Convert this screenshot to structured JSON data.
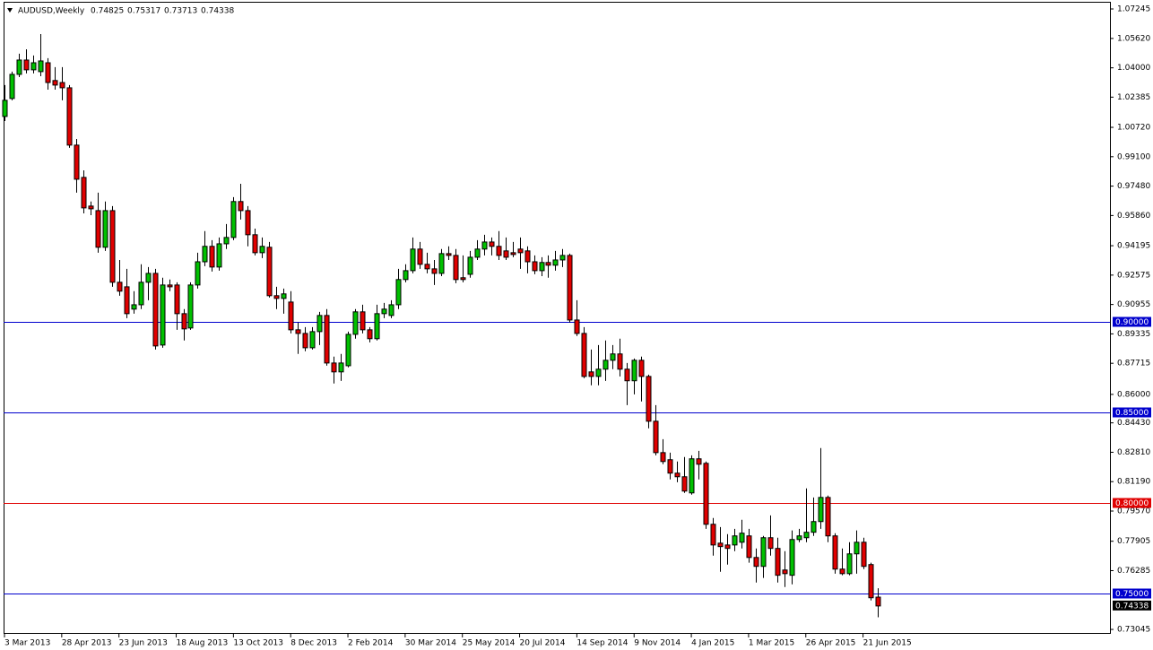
{
  "chart_data": {
    "type": "candlestick",
    "title": "AUDUSD,Weekly",
    "categories": [
      "3 Mar 2013",
      null,
      null,
      null,
      null,
      null,
      null,
      null,
      "28 Apr 2013",
      null,
      null,
      null,
      null,
      null,
      null,
      null,
      "23 Jun 2013",
      null,
      null,
      null,
      null,
      null,
      null,
      null,
      "18 Aug 2013",
      null,
      null,
      null,
      null,
      null,
      null,
      null,
      "13 Oct 2013",
      null,
      null,
      null,
      null,
      null,
      null,
      null,
      "8 Dec 2013",
      null,
      null,
      null,
      null,
      null,
      null,
      null,
      "2 Feb 2014",
      null,
      null,
      null,
      null,
      null,
      null,
      null,
      "30 Mar 2014",
      null,
      null,
      null,
      null,
      null,
      null,
      null,
      "25 May 2014",
      null,
      null,
      null,
      null,
      null,
      null,
      null,
      "20 Jul 2014",
      null,
      null,
      null,
      null,
      null,
      null,
      null,
      "14 Sep 2014",
      null,
      null,
      null,
      null,
      null,
      null,
      null,
      "9 Nov 2014",
      null,
      null,
      null,
      null,
      null,
      null,
      null,
      "4 Jan 2015",
      null,
      null,
      null,
      null,
      null,
      null,
      null,
      "1 Mar 2015",
      null,
      null,
      null,
      null,
      null,
      null,
      null,
      "26 Apr 2015",
      null,
      null,
      null,
      null,
      null,
      null,
      null,
      "21 Jun 2015",
      null,
      null
    ],
    "open": [
      1.0132,
      1.0231,
      1.0364,
      1.0443,
      1.0389,
      1.0379,
      1.0428,
      1.033,
      1.0319,
      1.029,
      0.9974,
      0.9796,
      0.9638,
      0.9613,
      0.9411,
      0.9613,
      0.9218,
      0.9193,
      0.907,
      0.9094,
      0.9218,
      0.9267,
      0.8872,
      0.9203,
      0.9203,
      0.9045,
      0.8966,
      0.9203,
      0.9331,
      0.9416,
      0.9302,
      0.943,
      0.9465,
      0.9663,
      0.9613,
      0.948,
      0.9381,
      0.9411,
      0.9144,
      0.9129,
      0.9109,
      0.8956,
      0.8936,
      0.8857,
      0.8946,
      0.9035,
      0.8773,
      0.8724,
      0.8758,
      0.8931,
      0.9055,
      0.8956,
      0.8907,
      0.9045,
      0.9035,
      0.9094,
      0.9233,
      0.9282,
      0.9401,
      0.9317,
      0.9292,
      0.9267,
      0.9376,
      0.9366,
      0.9243,
      0.9262,
      0.9356,
      0.9401,
      0.944,
      0.9416,
      0.9391,
      0.9381,
      0.9401,
      0.9391,
      0.9331,
      0.9282,
      0.9327,
      0.9312,
      0.9341,
      0.9366,
      0.901,
      0.8936,
      0.8724,
      0.8699,
      0.8739,
      0.8788,
      0.8823,
      0.8739,
      0.8675,
      0.8788,
      0.8699,
      0.8452,
      0.8279,
      0.824,
      0.8166,
      0.8146,
      0.8057,
      0.8245,
      0.822,
      0.7884,
      0.778,
      0.777,
      0.777,
      0.7785,
      0.782,
      0.7701,
      0.7652,
      0.781,
      0.7751,
      0.7632,
      0.7603,
      0.78,
      0.781,
      0.784,
      0.7899,
      0.8032,
      0.782,
      0.7637,
      0.7612,
      0.7721,
      0.7785,
      0.7662,
      0.74825
    ],
    "high": [
      1.0305,
      1.0379,
      1.0478,
      1.0502,
      1.0468,
      1.0586,
      1.0453,
      1.0404,
      1.0404,
      1.0305,
      1.0008,
      0.9835,
      0.9663,
      0.9712,
      0.9663,
      0.9638,
      0.9341,
      0.9292,
      0.9169,
      0.9317,
      0.9302,
      0.9292,
      0.9243,
      0.9233,
      0.9218,
      0.907,
      0.9218,
      0.9381,
      0.95,
      0.945,
      0.9465,
      0.9539,
      0.9687,
      0.9761,
      0.9638,
      0.9514,
      0.9465,
      0.944,
      0.9193,
      0.9183,
      0.9169,
      0.8996,
      0.8971,
      0.8971,
      0.9055,
      0.907,
      0.8808,
      0.8823,
      0.8946,
      0.907,
      0.9094,
      0.8971,
      0.9094,
      0.9104,
      0.9119,
      0.9292,
      0.9317,
      0.9465,
      0.944,
      0.9381,
      0.9341,
      0.9401,
      0.9416,
      0.9401,
      0.9366,
      0.9391,
      0.945,
      0.948,
      0.9465,
      0.95,
      0.9465,
      0.944,
      0.9465,
      0.9416,
      0.9366,
      0.9356,
      0.9366,
      0.9391,
      0.9401,
      0.9376,
      0.9119,
      0.8971,
      0.8847,
      0.8872,
      0.8897,
      0.8872,
      0.8907,
      0.8773,
      0.8798,
      0.8808,
      0.8709,
      0.8541,
      0.8353,
      0.8279,
      0.823,
      0.8255,
      0.8264,
      0.8289,
      0.823,
      0.7919,
      0.7869,
      0.783,
      0.7859,
      0.7909,
      0.7859,
      0.7751,
      0.782,
      0.7933,
      0.781,
      0.7736,
      0.785,
      0.7859,
      0.8082,
      0.8032,
      0.8304,
      0.8042,
      0.7835,
      0.7751,
      0.7785,
      0.785,
      0.781,
      0.7672,
      0.75317
    ],
    "low": [
      1.0107,
      1.0221,
      1.0349,
      1.0369,
      1.0369,
      1.0354,
      1.028,
      1.028,
      1.0221,
      0.9959,
      0.9712,
      0.9598,
      0.9588,
      0.9381,
      0.9391,
      0.9193,
      0.9144,
      0.902,
      0.9045,
      0.907,
      0.9119,
      0.8847,
      0.8857,
      0.9169,
      0.8956,
      0.8897,
      0.8956,
      0.9183,
      0.9307,
      0.9277,
      0.9282,
      0.9401,
      0.945,
      0.9564,
      0.9416,
      0.9366,
      0.9351,
      0.9134,
      0.907,
      0.9045,
      0.8936,
      0.8823,
      0.8838,
      0.8847,
      0.8872,
      0.8758,
      0.866,
      0.8674,
      0.8749,
      0.8907,
      0.8936,
      0.8887,
      0.8897,
      0.902,
      0.902,
      0.907,
      0.9218,
      0.9267,
      0.9292,
      0.9267,
      0.9203,
      0.9252,
      0.9341,
      0.9213,
      0.9218,
      0.9243,
      0.9341,
      0.9366,
      0.9366,
      0.9341,
      0.9341,
      0.9356,
      0.9292,
      0.9267,
      0.9262,
      0.9252,
      0.9243,
      0.9282,
      0.9302,
      0.8996,
      0.8922,
      0.8689,
      0.865,
      0.865,
      0.8674,
      0.8739,
      0.8699,
      0.8541,
      0.86,
      0.8561,
      0.8413,
      0.8264,
      0.8215,
      0.8131,
      0.8116,
      0.8057,
      0.8047,
      0.8131,
      0.7859,
      0.7711,
      0.7622,
      0.7662,
      0.7736,
      0.7751,
      0.7672,
      0.7563,
      0.7588,
      0.7711,
      0.7563,
      0.7538,
      0.7553,
      0.7785,
      0.7785,
      0.782,
      0.7859,
      0.7785,
      0.7612,
      0.7603,
      0.7603,
      0.7612,
      0.7637,
      0.7464,
      0.73713
    ],
    "close": [
      1.0221,
      1.0364,
      1.0443,
      1.0389,
      1.0428,
      1.0438,
      1.0319,
      1.0305,
      1.029,
      0.9974,
      0.9786,
      0.9628,
      0.9623,
      0.9411,
      0.9613,
      0.9218,
      0.9169,
      0.9045,
      0.9094,
      0.9218,
      0.9267,
      0.8867,
      0.9203,
      0.9193,
      0.9045,
      0.8961,
      0.9203,
      0.9331,
      0.9416,
      0.9302,
      0.943,
      0.9465,
      0.9663,
      0.9613,
      0.948,
      0.9381,
      0.9416,
      0.9144,
      0.9129,
      0.9154,
      0.8956,
      0.8936,
      0.8857,
      0.8946,
      0.9035,
      0.8773,
      0.8724,
      0.8773,
      0.8931,
      0.9055,
      0.8956,
      0.8907,
      0.9045,
      0.907,
      0.9094,
      0.9233,
      0.9282,
      0.9401,
      0.9317,
      0.9292,
      0.9267,
      0.9376,
      0.9366,
      0.9233,
      0.9233,
      0.9356,
      0.9401,
      0.944,
      0.9416,
      0.9366,
      0.9356,
      0.9371,
      0.9381,
      0.9331,
      0.9282,
      0.9327,
      0.9312,
      0.9341,
      0.9366,
      0.901,
      0.8936,
      0.8699,
      0.8699,
      0.8739,
      0.8788,
      0.8823,
      0.8739,
      0.8675,
      0.8788,
      0.8699,
      0.8452,
      0.8279,
      0.823,
      0.8166,
      0.8146,
      0.8067,
      0.8245,
      0.8215,
      0.7884,
      0.777,
      0.7761,
      0.7751,
      0.782,
      0.7835,
      0.7701,
      0.7652,
      0.781,
      0.7751,
      0.7603,
      0.7612,
      0.78,
      0.782,
      0.784,
      0.7899,
      0.8032,
      0.782,
      0.7637,
      0.7612,
      0.7721,
      0.7785,
      0.7652,
      0.7479,
      0.74338
    ],
    "up_color": "#00c000",
    "down_color": "#e00000",
    "ylim": [
      0.728,
      1.0764
    ],
    "yticks": [
      1.07245,
      {
        "value": 1.0562,
        "label": "1.05620"
      },
      {
        "value": 1.04,
        "label": "1.04000"
      },
      1.02385,
      {
        "value": 1.0072,
        "label": "1.00720"
      },
      {
        "value": 0.991,
        "label": "0.99100"
      },
      {
        "value": 0.9748,
        "label": "0.97480"
      },
      {
        "value": 0.9586,
        "label": "0.95860"
      },
      0.94195,
      0.92575,
      0.90955,
      0.89335,
      0.87715,
      {
        "value": 0.86,
        "label": "0.86000"
      },
      {
        "value": 0.8443,
        "label": "0.84430"
      },
      {
        "value": 0.8281,
        "label": "0.82810"
      },
      {
        "value": 0.8119,
        "label": "0.81190"
      },
      {
        "value": 0.7957,
        "label": "0.79570"
      },
      0.77905,
      0.76285,
      0.73045
    ],
    "levels": [
      {
        "value": 0.9,
        "label": "0.90000",
        "color": "#0000cd"
      },
      {
        "value": 0.85,
        "label": "0.85000",
        "color": "#0000cd"
      },
      {
        "value": 0.8,
        "label": "0.80000",
        "color": "#e00000"
      },
      {
        "value": 0.75,
        "label": "0.75000",
        "color": "#0000cd"
      }
    ],
    "grid": false
  }
}
